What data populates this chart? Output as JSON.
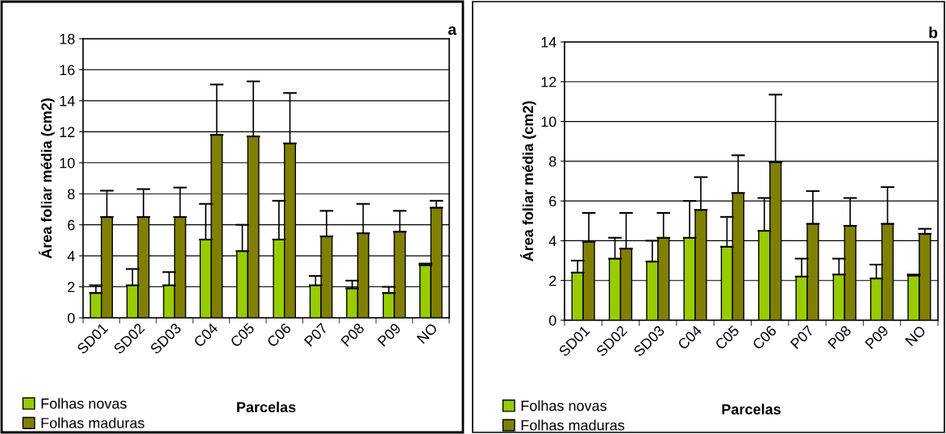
{
  "chart_data": [
    {
      "type": "bar",
      "title": "a",
      "xlabel": "Parcelas",
      "ylabel": "Área foliar média (cm2)",
      "categories": [
        "SD01",
        "SD02",
        "SD03",
        "C04",
        "C05",
        "C06",
        "P07",
        "P08",
        "P09",
        "NO"
      ],
      "series": [
        {
          "name": "Folhas novas",
          "color": "#99cc00",
          "values": [
            1.6,
            2.1,
            2.1,
            5.05,
            4.3,
            5.05,
            2.1,
            1.9,
            1.6,
            3.4
          ],
          "errors": [
            [
              1.6,
              2.1
            ],
            [
              2.1,
              3.15
            ],
            [
              2.1,
              2.95
            ],
            [
              5.05,
              7.35
            ],
            [
              4.3,
              6.0
            ],
            [
              5.05,
              7.55
            ],
            [
              2.1,
              2.7
            ],
            [
              1.9,
              2.4
            ],
            [
              1.6,
              2.0
            ],
            [
              3.4,
              3.5
            ]
          ]
        },
        {
          "name": "Folhas maduras",
          "color": "#808000",
          "values": [
            6.5,
            6.5,
            6.5,
            11.8,
            11.7,
            11.25,
            5.25,
            5.45,
            5.55,
            7.1
          ],
          "errors": [
            [
              6.5,
              8.2
            ],
            [
              6.5,
              8.3
            ],
            [
              6.5,
              8.4
            ],
            [
              11.8,
              15.05
            ],
            [
              11.7,
              15.25
            ],
            [
              11.25,
              14.5
            ],
            [
              5.25,
              6.9
            ],
            [
              5.45,
              7.35
            ],
            [
              5.55,
              6.9
            ],
            [
              7.1,
              7.55
            ]
          ]
        }
      ],
      "ylim": [
        0,
        18
      ],
      "yticks": [
        0,
        2,
        4,
        6,
        8,
        10,
        12,
        14,
        16,
        18
      ],
      "grid": "y",
      "legend": "bottom left"
    },
    {
      "type": "bar",
      "title": "b",
      "xlabel": "Parcelas",
      "ylabel": "Área foliar média (cm2)",
      "categories": [
        "SD01",
        "SD02",
        "SD03",
        "C04",
        "C05",
        "C06",
        "P07",
        "P08",
        "P09",
        "NO"
      ],
      "series": [
        {
          "name": "Folhas novas",
          "color": "#99cc00",
          "values": [
            2.4,
            3.1,
            2.95,
            4.15,
            3.7,
            4.5,
            2.2,
            2.3,
            2.1,
            2.25
          ],
          "errors": [
            [
              2.4,
              3.0
            ],
            [
              3.1,
              4.15
            ],
            [
              2.95,
              4.0
            ],
            [
              4.15,
              6.0
            ],
            [
              3.7,
              5.2
            ],
            [
              4.5,
              6.15
            ],
            [
              2.2,
              3.1
            ],
            [
              2.3,
              3.1
            ],
            [
              2.1,
              2.8
            ],
            [
              2.25,
              2.3
            ]
          ]
        },
        {
          "name": "Folhas maduras",
          "color": "#808000",
          "values": [
            3.95,
            3.6,
            4.15,
            5.55,
            6.4,
            7.95,
            4.85,
            4.75,
            4.85,
            4.35
          ],
          "errors": [
            [
              3.95,
              5.4
            ],
            [
              3.6,
              5.4
            ],
            [
              4.15,
              5.4
            ],
            [
              5.55,
              7.2
            ],
            [
              6.4,
              8.3
            ],
            [
              7.95,
              11.35
            ],
            [
              4.85,
              6.5
            ],
            [
              4.75,
              6.15
            ],
            [
              4.85,
              6.7
            ],
            [
              4.35,
              4.6
            ]
          ]
        }
      ],
      "ylim": [
        0,
        14
      ],
      "yticks": [
        0,
        2,
        4,
        6,
        8,
        10,
        12,
        14
      ],
      "grid": "y",
      "legend": "bottom left"
    }
  ]
}
